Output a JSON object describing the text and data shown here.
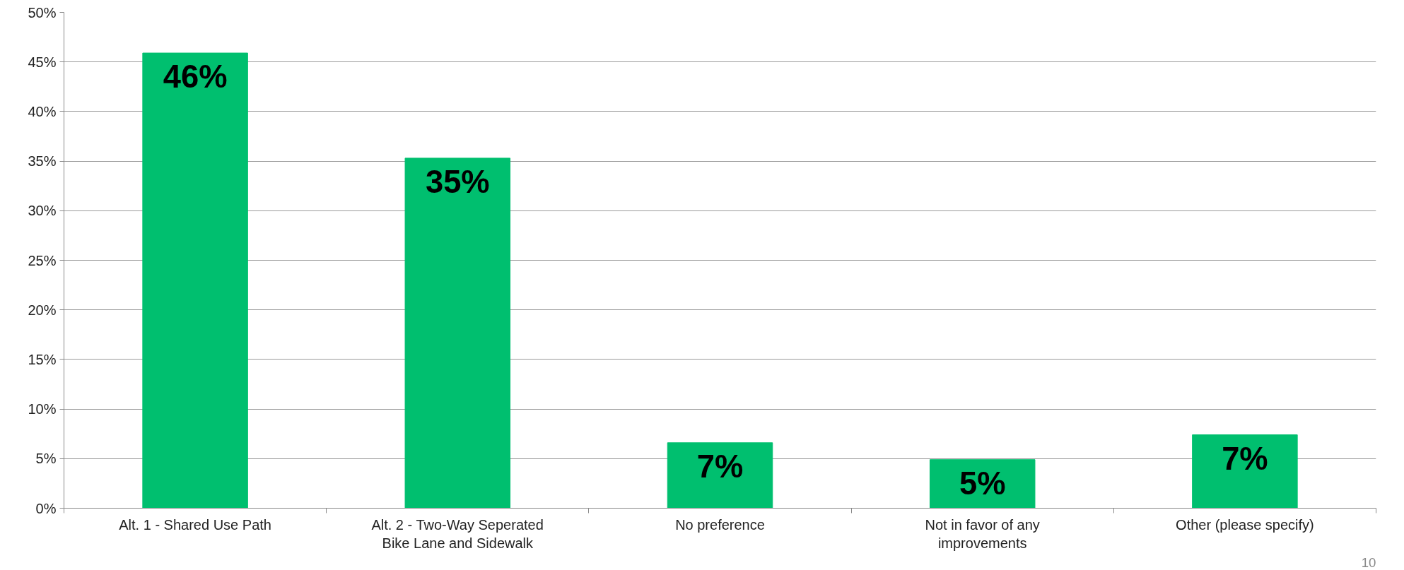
{
  "chart_data": {
    "type": "bar",
    "categories": [
      "Alt. 1 - Shared Use Path",
      "Alt. 2 - Two-Way Seperated Bike Lane and Sidewalk",
      "No preference",
      "Not in favor of any improvements",
      "Other (please specify)"
    ],
    "values": [
      45.9,
      35.3,
      6.6,
      4.9,
      7.4
    ],
    "value_labels": [
      "46%",
      "35%",
      "7%",
      "5%",
      "7%"
    ],
    "color": "#00bf6f",
    "ylim": [
      0,
      50
    ],
    "yticks": [
      {
        "value": 0,
        "label": "0%"
      },
      {
        "value": 5,
        "label": "5%"
      },
      {
        "value": 10,
        "label": "10%"
      },
      {
        "value": 15,
        "label": "15%"
      },
      {
        "value": 20,
        "label": "20%"
      },
      {
        "value": 25,
        "label": "25%"
      },
      {
        "value": 30,
        "label": "30%"
      },
      {
        "value": 35,
        "label": "35%"
      },
      {
        "value": 40,
        "label": "40%"
      },
      {
        "value": 45,
        "label": "45%"
      },
      {
        "value": 50,
        "label": "50%"
      }
    ],
    "grid": "y",
    "annotations": [
      "10"
    ]
  }
}
